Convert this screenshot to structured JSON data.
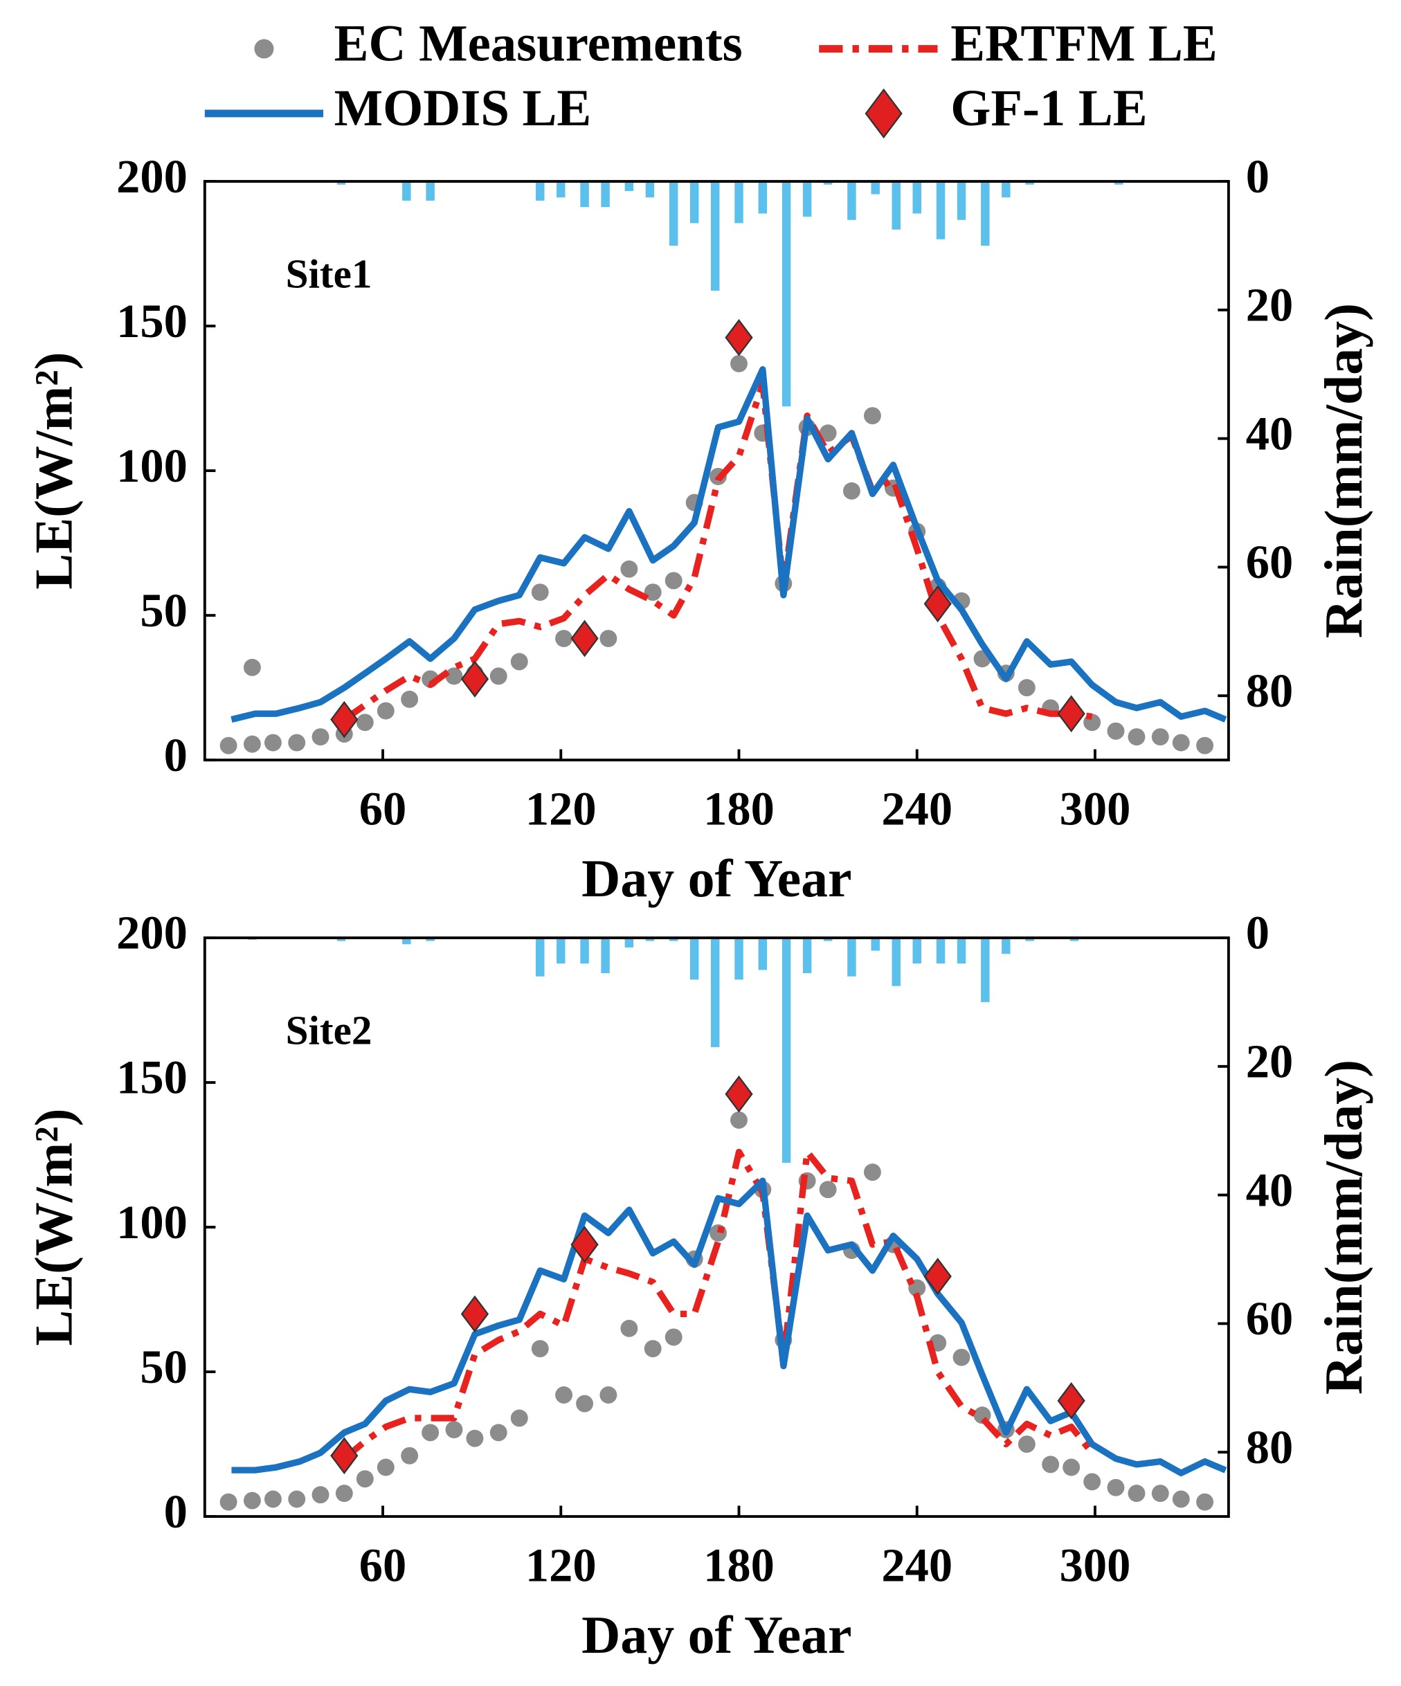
{
  "chart_data": [
    {
      "type": "line",
      "annotation": "Site1",
      "xlabel": "Day of Year",
      "ylabel": "LE(W/m²)",
      "y2label": "Rain(mm/day)",
      "xlim": [
        0,
        345
      ],
      "ylim": [
        0,
        200
      ],
      "y2lim": [
        0,
        90
      ],
      "y2_inverted": true,
      "xticks": [
        60,
        120,
        180,
        240,
        300
      ],
      "yticks": [
        0,
        50,
        100,
        150,
        200
      ],
      "y2ticks": [
        0,
        20,
        40,
        60,
        80
      ],
      "series": [
        {
          "name": "EC Measurements",
          "style": "points",
          "color": "#8c8c8c",
          "x": [
            8,
            16,
            16,
            23,
            31,
            39,
            47,
            54,
            61,
            69,
            76,
            84,
            91,
            99,
            106,
            113,
            121,
            128,
            136,
            143,
            151,
            158,
            165,
            173,
            180,
            188,
            195,
            203,
            210,
            218,
            225,
            232,
            240,
            247,
            255,
            262,
            270,
            277,
            285,
            292,
            299,
            307,
            314,
            322,
            329,
            337
          ],
          "values": [
            5,
            32,
            5.5,
            6,
            6,
            8,
            9,
            13,
            17,
            21,
            28,
            29,
            30,
            29,
            34,
            58,
            42,
            41,
            42,
            66,
            58,
            62,
            89,
            98,
            137,
            113,
            61,
            115,
            113,
            93,
            119,
            94,
            79,
            60,
            55,
            35,
            30,
            25,
            18,
            17,
            13,
            10,
            8,
            8,
            6,
            5
          ]
        },
        {
          "name": "ERTFM LE",
          "style": "dashdot",
          "color": "#e8231f",
          "x": [
            9,
            17,
            24,
            32,
            39,
            47,
            54,
            61,
            69,
            76,
            84,
            91,
            99,
            106,
            113,
            121,
            128,
            136,
            143,
            151,
            158,
            165,
            173,
            180,
            188,
            195,
            203,
            210,
            218,
            225,
            232,
            240,
            247,
            255,
            262,
            270,
            277,
            285,
            292,
            299,
            307,
            314,
            322,
            329,
            337,
            344
          ],
          "values": [
            null,
            null,
            null,
            null,
            null,
            14,
            19,
            24,
            29,
            26,
            32,
            35,
            47,
            48,
            46,
            49,
            57,
            64,
            59,
            55,
            50,
            63,
            97,
            105,
            130,
            60,
            119,
            106,
            112,
            93,
            97,
            73,
            50,
            35,
            18,
            16,
            18,
            16,
            16,
            15,
            null,
            null,
            null,
            null,
            null,
            null
          ]
        },
        {
          "name": "MODIS LE",
          "style": "solid",
          "color": "#1a72c0",
          "x": [
            9,
            17,
            24,
            32,
            39,
            47,
            54,
            61,
            69,
            76,
            84,
            91,
            99,
            106,
            113,
            121,
            128,
            136,
            143,
            151,
            158,
            165,
            173,
            180,
            188,
            195,
            203,
            210,
            218,
            225,
            232,
            240,
            247,
            255,
            262,
            270,
            277,
            285,
            292,
            299,
            307,
            314,
            322,
            329,
            337,
            344
          ],
          "values": [
            14,
            16,
            16,
            18,
            20,
            25,
            30,
            35,
            41,
            35,
            42,
            52,
            55,
            57,
            70,
            68,
            77,
            73,
            86,
            69,
            74,
            82,
            115,
            117,
            135,
            57,
            118,
            104,
            113,
            92,
            102,
            80,
            62,
            52,
            40,
            28,
            41,
            33,
            34,
            26,
            20,
            18,
            20,
            15,
            17,
            14
          ]
        },
        {
          "name": "GF-1 LE",
          "style": "diamonds",
          "color": "#e02020",
          "x": [
            47,
            91,
            128,
            180,
            247,
            292
          ],
          "values": [
            14,
            28,
            42,
            146,
            54,
            16
          ]
        },
        {
          "style": "bars",
          "axis": "y2",
          "color": "#5bc0eb",
          "x": [
            46,
            68,
            76,
            113,
            120,
            128,
            135,
            143,
            150,
            158,
            165,
            172,
            180,
            188,
            196,
            203,
            210,
            218,
            226,
            233,
            240,
            248,
            255,
            263,
            270,
            278,
            308
          ],
          "values": [
            0.5,
            3,
            3,
            3,
            2.5,
            4,
            4,
            1.5,
            2.5,
            10,
            6.5,
            17,
            6.5,
            5,
            35,
            5.5,
            0.5,
            6,
            2,
            7.5,
            5,
            9,
            6,
            10,
            2.5,
            0.5,
            0.5
          ]
        }
      ]
    },
    {
      "type": "line",
      "annotation": "Site2",
      "xlabel": "Day of Year",
      "ylabel": "LE(W/m²)",
      "y2label": "Rain(mm/day)",
      "xlim": [
        0,
        345
      ],
      "ylim": [
        0,
        200
      ],
      "y2lim": [
        0,
        90
      ],
      "y2_inverted": true,
      "xticks": [
        60,
        120,
        180,
        240,
        300
      ],
      "yticks": [
        0,
        50,
        100,
        150,
        200
      ],
      "y2ticks": [
        0,
        20,
        40,
        60,
        80
      ],
      "series": [
        {
          "style": "points",
          "color": "#8c8c8c",
          "x": [
            8,
            16,
            23,
            31,
            39,
            47,
            54,
            61,
            69,
            76,
            84,
            91,
            99,
            106,
            113,
            121,
            128,
            136,
            143,
            151,
            158,
            165,
            173,
            180,
            188,
            195,
            203,
            210,
            218,
            225,
            232,
            240,
            247,
            255,
            262,
            270,
            277,
            285,
            292,
            299,
            307,
            314,
            322,
            329,
            337
          ],
          "values": [
            5,
            5.5,
            6,
            6,
            7.5,
            8,
            13,
            17,
            21,
            29,
            30,
            27,
            29,
            34,
            58,
            42,
            39,
            42,
            65,
            58,
            62,
            89,
            98,
            137,
            113,
            61,
            116,
            113,
            92,
            119,
            94,
            79,
            60,
            55,
            35,
            30,
            25,
            18,
            17,
            12,
            10,
            8,
            8,
            6,
            5
          ]
        },
        {
          "style": "dashdot",
          "color": "#e8231f",
          "x": [
            9,
            17,
            24,
            32,
            39,
            47,
            54,
            61,
            69,
            76,
            84,
            91,
            99,
            106,
            113,
            121,
            128,
            136,
            143,
            151,
            158,
            165,
            173,
            180,
            188,
            195,
            203,
            210,
            218,
            225,
            232,
            240,
            247,
            255,
            262,
            270,
            277,
            285,
            292,
            299,
            307,
            314,
            322,
            329,
            337,
            344
          ],
          "values": [
            null,
            null,
            null,
            null,
            null,
            20,
            26,
            31,
            34,
            34,
            34,
            56,
            61,
            64,
            70,
            66,
            89,
            86,
            84,
            81,
            70,
            70,
            95,
            126,
            112,
            54,
            126,
            117,
            116,
            94,
            95,
            76,
            50,
            38,
            34,
            25,
            32,
            28,
            31,
            22,
            null,
            null,
            null,
            null,
            null,
            null
          ]
        },
        {
          "style": "solid",
          "color": "#1a72c0",
          "x": [
            9,
            17,
            24,
            32,
            39,
            47,
            54,
            61,
            69,
            76,
            84,
            91,
            99,
            106,
            113,
            121,
            128,
            136,
            143,
            151,
            158,
            165,
            173,
            180,
            188,
            195,
            203,
            210,
            218,
            225,
            232,
            240,
            247,
            255,
            262,
            270,
            277,
            285,
            292,
            299,
            307,
            314,
            322,
            329,
            337,
            344
          ],
          "values": [
            16,
            16,
            17,
            19,
            22,
            29,
            32,
            40,
            44,
            43,
            46,
            63,
            66,
            68,
            85,
            82,
            104,
            98,
            106,
            91,
            95,
            87,
            110,
            108,
            116,
            52,
            104,
            92,
            94,
            85,
            97,
            89,
            77,
            67,
            49,
            29,
            44,
            33,
            36,
            25,
            20,
            18,
            19,
            15,
            19,
            16
          ]
        },
        {
          "style": "diamonds",
          "color": "#e02020",
          "x": [
            47,
            91,
            128,
            180,
            247,
            292
          ],
          "values": [
            21,
            70,
            94,
            146,
            83,
            40
          ]
        },
        {
          "style": "bars",
          "axis": "y2",
          "color": "#5bc0eb",
          "x": [
            16,
            46,
            68,
            76,
            113,
            120,
            128,
            135,
            143,
            150,
            158,
            165,
            172,
            180,
            188,
            196,
            203,
            210,
            218,
            226,
            233,
            240,
            248,
            255,
            263,
            270,
            278,
            293
          ],
          "values": [
            0.3,
            0.5,
            1,
            0.5,
            6,
            4,
            4,
            5.5,
            1.5,
            0.5,
            0.5,
            6.5,
            17,
            6.5,
            5,
            35,
            5.5,
            0.5,
            6,
            2,
            7.5,
            4,
            4,
            4,
            10,
            2.5,
            0.5,
            0.5
          ]
        }
      ]
    }
  ]
}
